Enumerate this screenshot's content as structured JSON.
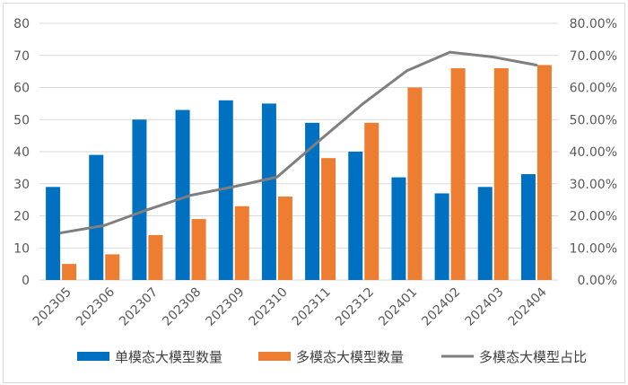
{
  "chart_data": {
    "type": "bar",
    "categories": [
      "202305",
      "202306",
      "202307",
      "202308",
      "202309",
      "202310",
      "202311",
      "202312",
      "202401",
      "202402",
      "202403",
      "202404"
    ],
    "series": [
      {
        "name": "单模态大模型数量",
        "type": "bar",
        "axis": "left",
        "color": "#0070C0",
        "values": [
          29,
          39,
          50,
          53,
          56,
          55,
          49,
          40,
          32,
          27,
          29,
          33
        ]
      },
      {
        "name": "多模态大模型数量",
        "type": "bar",
        "axis": "left",
        "color": "#ED7D31",
        "values": [
          5,
          8,
          14,
          19,
          23,
          26,
          38,
          49,
          60,
          66,
          66,
          67
        ]
      },
      {
        "name": "多模态大模型占比",
        "type": "line",
        "axis": "right",
        "color": "#7F7F7F",
        "values": [
          14.7,
          17.0,
          21.9,
          26.4,
          29.1,
          32.1,
          43.7,
          55.1,
          65.2,
          71.0,
          69.5,
          67.0
        ]
      }
    ],
    "y_left": {
      "ylim": [
        0,
        80
      ],
      "ticks": [
        "0",
        "10",
        "20",
        "30",
        "40",
        "50",
        "60",
        "70",
        "80"
      ]
    },
    "y_right": {
      "ylim": [
        0,
        80
      ],
      "ticks": [
        "0.00%",
        "10.00%",
        "20.00%",
        "30.00%",
        "40.00%",
        "50.00%",
        "60.00%",
        "70.00%",
        "80.00%"
      ]
    },
    "grid": true,
    "legend_position": "bottom",
    "title": ""
  }
}
